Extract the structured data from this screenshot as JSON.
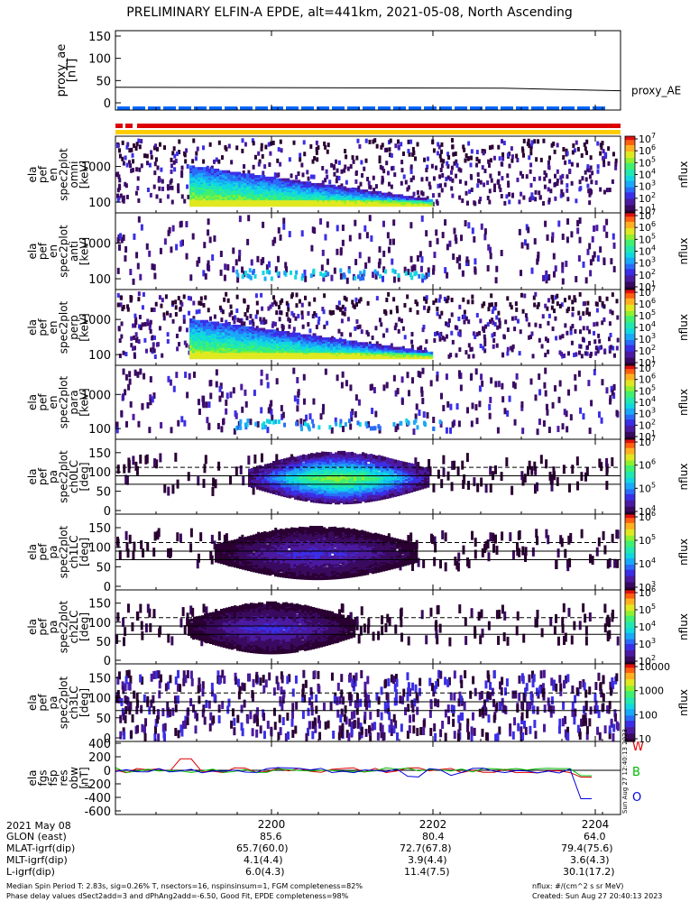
{
  "title": "PRELIMINARY ELFIN-A EPDE, alt=441km, 2021-05-08, North Ascending",
  "panels": [
    {
      "ylabel": [
        "proxy_ae",
        "[nT]"
      ],
      "side_label": "proxy_AE",
      "yticks": [
        "150",
        "100",
        "50",
        "0"
      ]
    },
    {
      "ylabel": [
        "ela",
        "pef",
        "en",
        "spec2plot",
        "omni",
        "[keV]"
      ],
      "side_label": "nflux",
      "yticks": [
        "1000",
        "100"
      ]
    },
    {
      "ylabel": [
        "ela",
        "pef",
        "en",
        "spec2plot",
        "anti",
        "[keV]"
      ],
      "side_label": "nflux",
      "yticks": [
        "1000",
        "100"
      ]
    },
    {
      "ylabel": [
        "ela",
        "pef",
        "en",
        "spec2plot",
        "perp",
        "[keV]"
      ],
      "side_label": "nflux",
      "yticks": [
        "1000",
        "100"
      ]
    },
    {
      "ylabel": [
        "ela",
        "pef",
        "en",
        "spec2plot",
        "para",
        "[keV]"
      ],
      "side_label": "nflux",
      "yticks": [
        "1000",
        "100"
      ]
    },
    {
      "ylabel": [
        "ela",
        "pef",
        "pa",
        "spec2plot",
        "ch0LC",
        "[deg]"
      ],
      "side_label": "nflux",
      "yticks": [
        "150",
        "100",
        "50",
        "0"
      ]
    },
    {
      "ylabel": [
        "ela",
        "pef",
        "pa",
        "spec2plot",
        "ch1LC",
        "[deg]"
      ],
      "side_label": "nflux",
      "yticks": [
        "150",
        "100",
        "50",
        "0"
      ]
    },
    {
      "ylabel": [
        "ela",
        "pef",
        "pa",
        "spec2plot",
        "ch2LC",
        "[deg]"
      ],
      "side_label": "nflux",
      "yticks": [
        "150",
        "100",
        "50",
        "0"
      ]
    },
    {
      "ylabel": [
        "ela",
        "pef",
        "pa",
        "spec2plot",
        "ch3LC",
        "[deg]"
      ],
      "side_label": "nflux",
      "yticks": [
        "150",
        "100",
        "50",
        "0"
      ]
    },
    {
      "ylabel": [
        "ela",
        "fgs",
        "fsp",
        "res",
        "obw",
        "[nT]"
      ],
      "side_label": "",
      "yticks": [
        "400",
        "200",
        "0",
        "-200",
        "-400",
        "-600"
      ]
    }
  ],
  "colorbar_ticks": {
    "energy": [
      "10^7",
      "10^6",
      "10^5",
      "10^4",
      "10^3",
      "10^2",
      "10^1"
    ],
    "ch0": [
      "10^7",
      "10^6",
      "10^5",
      "10^4"
    ],
    "ch1": [
      "10^6",
      "10^5",
      "10^4",
      "10^3"
    ],
    "ch2": [
      "10^6",
      "10^5",
      "10^4",
      "10^3",
      "10^2"
    ],
    "ch3": [
      "10000",
      "1000",
      "100",
      "10"
    ]
  },
  "component_labels": [
    {
      "text": "W",
      "color": "#dd0000"
    },
    {
      "text": "B",
      "color": "#00bb00"
    },
    {
      "text": "O",
      "color": "#0000dd"
    }
  ],
  "x_ticks": [
    "2200",
    "2202",
    "2204"
  ],
  "ephemeris": {
    "header": "2021 May 08",
    "rows": [
      {
        "label": "GLON (east)",
        "values": [
          "85.6",
          "80.4",
          "64.0"
        ]
      },
      {
        "label": "MLAT-igrf(dip)",
        "values": [
          "65.7(60.0)",
          "72.7(67.8)",
          "79.4(75.6)"
        ]
      },
      {
        "label": "MLT-igrf(dip)",
        "values": [
          "4.1(4.4)",
          "3.9(4.4)",
          "3.6(4.3)"
        ]
      },
      {
        "label": "L-igrf(dip)",
        "values": [
          "6.0(4.3)",
          "11.4(7.5)",
          "30.1(17.2)"
        ]
      }
    ]
  },
  "footer": {
    "line1": "Median Spin Period T: 2.83s, sig=0.26% T, nsectors=16, nspinsinsum=1, FGM completeness=82%",
    "line2": "Phase delay values dSect2add=3 and dPhAng2add=-6.50, Good Fit, EPDE completeness=98%",
    "units": "nflux: #/(cm^2 s sr MeV)",
    "created": "Created: Sun Aug 27 20:40:13 2023",
    "side_stamp": "Sun Aug 27 12:40:13 2023"
  },
  "chart_data": {
    "type": "heatmap",
    "title": "PRELIMINARY ELFIN-A EPDE, alt=441km, 2021-05-08, North Ascending",
    "x_range_label": [
      "2200",
      "2204"
    ],
    "proxy_ae": {
      "type": "line",
      "ylim": [
        0,
        150
      ],
      "start": 35,
      "end": 27
    },
    "fgs_residuals": {
      "type": "line",
      "ylim": [
        -600,
        400
      ],
      "series": [
        {
          "name": "W",
          "color": "#dd0000"
        },
        {
          "name": "B",
          "color": "#00bb00"
        },
        {
          "name": "O",
          "color": "#0000dd"
        }
      ]
    },
    "colors": {
      "red_bar": "#dd0000",
      "blue_bar": "#0066ff",
      "yellow_bar": "#ffcc00"
    }
  }
}
